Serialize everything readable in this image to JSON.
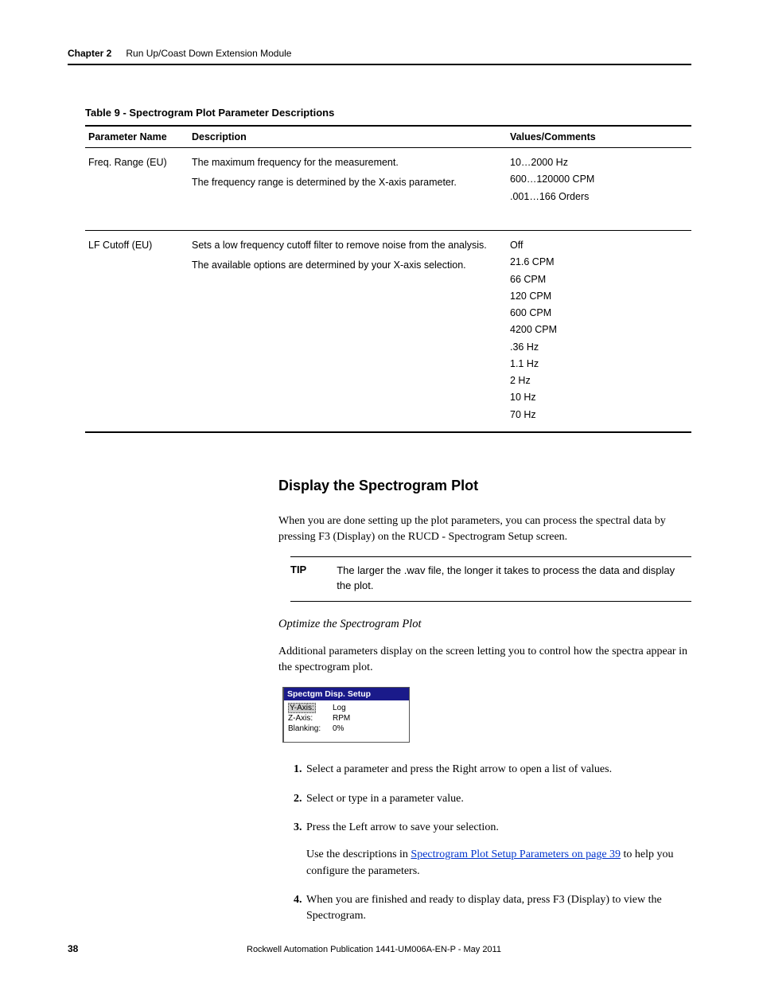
{
  "header": {
    "chapter_label": "Chapter 2",
    "chapter_title": "Run Up/Coast Down Extension Module"
  },
  "table": {
    "caption": "Table 9 - Spectrogram Plot Parameter Descriptions",
    "columns": [
      "Parameter Name",
      "Description",
      "Values/Comments"
    ],
    "rows": [
      {
        "name": "Freq. Range (EU)",
        "desc": [
          "The maximum frequency for the measurement.",
          "The frequency range is determined by the X-axis parameter."
        ],
        "vals": [
          "10…2000 Hz",
          "600…120000 CPM",
          ".001…166 Orders"
        ]
      },
      {
        "name": "LF Cutoff (EU)",
        "desc": [
          "Sets a low frequency cutoff filter to remove noise from the analysis.",
          "The available options are determined by your X-axis selection."
        ],
        "vals": [
          "Off",
          "21.6 CPM",
          "66 CPM",
          "120 CPM",
          "600 CPM",
          "4200 CPM",
          ".36 Hz",
          "1.1 Hz",
          "2 Hz",
          "10 Hz",
          "70 Hz"
        ]
      }
    ]
  },
  "section": {
    "h2": "Display the Spectrogram Plot",
    "intro": "When you are done setting up the plot parameters, you can process the spectral data by pressing F3 (Display) on the RUCD - Spectrogram Setup screen.",
    "tip_label": "TIP",
    "tip_text": "The larger the .wav file, the longer it takes to process the data and display the plot.",
    "sub_h": "Optimize the Spectrogram Plot",
    "sub_intro": "Additional parameters display on the screen letting you to control how the spectra appear in the spectrogram plot."
  },
  "screenshot": {
    "title": "Spectgm Disp. Setup",
    "rows": [
      {
        "key": "Y-Axis:",
        "val": "Log",
        "highlight": true
      },
      {
        "key": "Z-Axis:",
        "val": "RPM",
        "highlight": false
      },
      {
        "key": "Blanking:",
        "val": "0%",
        "highlight": false
      }
    ]
  },
  "steps": {
    "s1": "Select a parameter and press the Right arrow to open a list of values.",
    "s2": "Select or type in a parameter value.",
    "s3": "Press the Left arrow to save your selection.",
    "s3_sub_pre": "Use the descriptions in ",
    "s3_link": "Spectrogram Plot Setup Parameters on page 39",
    "s3_sub_post": " to help you configure the parameters.",
    "s4": "When you are finished and ready to display data, press F3 (Display) to view the Spectrogram."
  },
  "footer": {
    "page": "38",
    "pub": "Rockwell Automation Publication 1441-UM006A-EN-P - May 2011"
  }
}
